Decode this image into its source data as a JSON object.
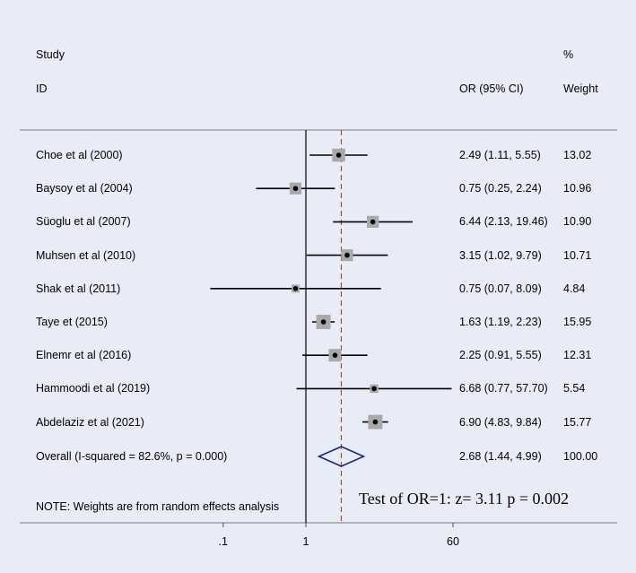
{
  "chart_data": {
    "type": "forest",
    "x_scale": "log",
    "axis_ticks": [
      {
        "value": 0.1,
        "label": ".1"
      },
      {
        "value": 1,
        "label": "1"
      },
      {
        "value": 60,
        "label": "60"
      }
    ],
    "null_line": 1,
    "header": {
      "study_line1": "Study",
      "study_line2": "ID",
      "or_label": "OR (95% CI)",
      "weight_line1": "%",
      "weight_line2": "Weight"
    },
    "studies": [
      {
        "name": "Choe et al  (2000)",
        "or": 2.49,
        "lo": 1.11,
        "hi": 5.55,
        "ci_text": "2.49 (1.11, 5.55)",
        "weight": 13.02,
        "weight_text": "13.02"
      },
      {
        "name": "Baysoy et al  (2004)",
        "or": 0.75,
        "lo": 0.25,
        "hi": 2.24,
        "ci_text": "0.75 (0.25, 2.24)",
        "weight": 10.96,
        "weight_text": "10.96"
      },
      {
        "name": "Süoglu et al  (2007)",
        "or": 6.44,
        "lo": 2.13,
        "hi": 19.46,
        "ci_text": "6.44 (2.13, 19.46)",
        "weight": 10.9,
        "weight_text": "10.90"
      },
      {
        "name": "Muhsen et al  (2010)",
        "or": 3.15,
        "lo": 1.02,
        "hi": 9.79,
        "ci_text": "3.15 (1.02, 9.79)",
        "weight": 10.71,
        "weight_text": "10.71"
      },
      {
        "name": "Shak et al (2011)",
        "or": 0.75,
        "lo": 0.07,
        "hi": 8.09,
        "ci_text": "0.75 (0.07, 8.09)",
        "weight": 4.84,
        "weight_text": "4.84"
      },
      {
        "name": "Taye et  (2015)",
        "or": 1.63,
        "lo": 1.19,
        "hi": 2.23,
        "ci_text": "1.63 (1.19, 2.23)",
        "weight": 15.95,
        "weight_text": "15.95"
      },
      {
        "name": "Elnemr  et al (2016)",
        "or": 2.25,
        "lo": 0.91,
        "hi": 5.55,
        "ci_text": "2.25 (0.91, 5.55)",
        "weight": 12.31,
        "weight_text": "12.31"
      },
      {
        "name": "Hammoodi et al  (2019)",
        "or": 6.68,
        "lo": 0.77,
        "hi": 57.7,
        "ci_text": "6.68 (0.77, 57.70)",
        "weight": 5.54,
        "weight_text": "5.54"
      },
      {
        "name": "Abdelaziz  et al  (2021)",
        "or": 6.9,
        "lo": 4.83,
        "hi": 9.84,
        "ci_text": "6.90 (4.83, 9.84)",
        "weight": 15.77,
        "weight_text": "15.77"
      }
    ],
    "overall": {
      "name": "Overall  (I-squared = 82.6%, p = 0.000)",
      "or": 2.68,
      "lo": 1.44,
      "hi": 4.99,
      "ci_text": "2.68 (1.44, 4.99)",
      "weight_text": "100.00"
    },
    "note": "NOTE: Weights are from random effects analysis",
    "test_text": "Test of OR=1: z=   3.11 p = 0.002"
  },
  "colors": {
    "background": "#e7ecf6",
    "box": "#a9a9a9",
    "diamond": "#1a237e",
    "overall_line": "#a0522d",
    "line": "#000000"
  }
}
